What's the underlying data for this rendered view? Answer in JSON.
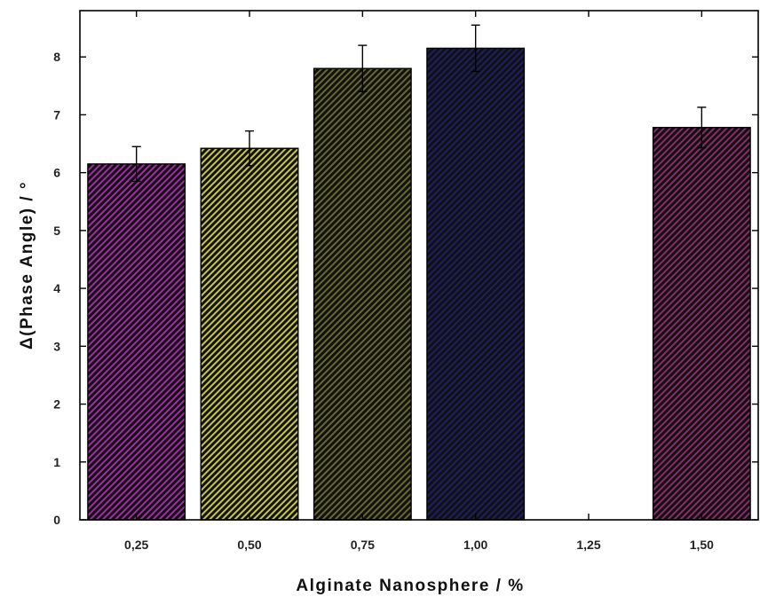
{
  "chart_data": {
    "type": "bar",
    "title": "",
    "xlabel": "Alginate Nanosphere / %",
    "ylabel": "Δ(Phase Angle) / °",
    "categories": [
      "0,25",
      "0,50",
      "0,75",
      "1,00",
      "1,25",
      "1,50"
    ],
    "values": [
      6.15,
      6.42,
      7.8,
      8.15,
      null,
      6.78
    ],
    "errors": [
      0.3,
      0.3,
      0.4,
      0.4,
      null,
      0.35
    ],
    "colors": [
      "#a22aa6",
      "#c8c640",
      "#66682e",
      "#1e1e66",
      null,
      "#8a2a6a"
    ],
    "ylim": [
      0,
      8.8
    ],
    "yticks": [
      "0",
      "1",
      "2",
      "3",
      "4",
      "5",
      "6",
      "7",
      "8"
    ],
    "grid": false,
    "legend": "none"
  }
}
